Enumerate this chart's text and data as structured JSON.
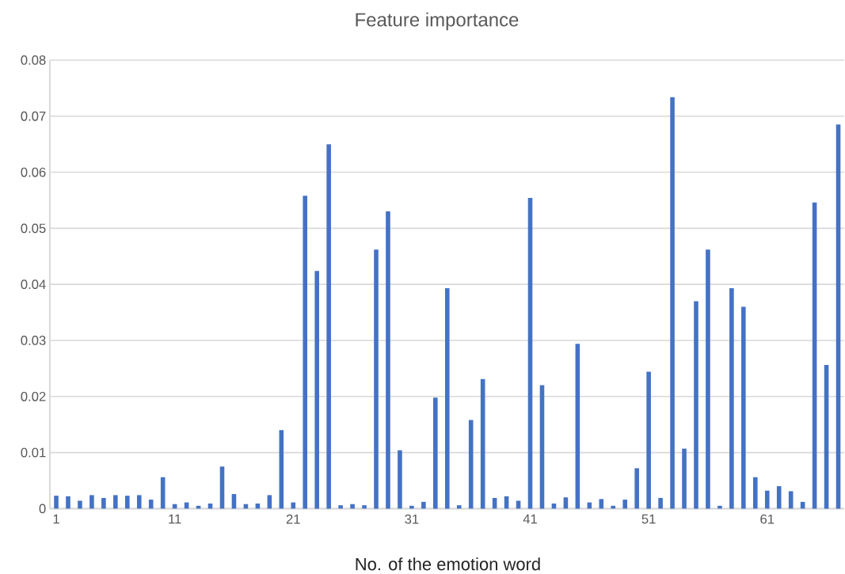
{
  "chart_data": {
    "type": "bar",
    "title": "Feature importance",
    "xlabel": "No. of the emotion word",
    "categories": [
      "1",
      null,
      null,
      null,
      null,
      null,
      null,
      null,
      null,
      null,
      "11",
      null,
      null,
      null,
      null,
      null,
      null,
      null,
      null,
      null,
      "21",
      null,
      null,
      null,
      null,
      null,
      null,
      null,
      null,
      null,
      "31",
      null,
      null,
      null,
      null,
      null,
      null,
      null,
      null,
      null,
      "41",
      null,
      null,
      null,
      null,
      null,
      null,
      null,
      null,
      null,
      "51",
      null,
      null,
      null,
      null,
      null,
      null,
      null,
      null,
      null,
      "61",
      null,
      null,
      null,
      null,
      null,
      null
    ],
    "values": [
      0.0023,
      0.0022,
      0.0014,
      0.0024,
      0.0019,
      0.0024,
      0.0023,
      0.0024,
      0.0016,
      0.0056,
      0.0008,
      0.0011,
      0.0005,
      0.0009,
      0.0075,
      0.0026,
      0.0008,
      0.0009,
      0.0024,
      0.014,
      0.0011,
      0.0558,
      0.0424,
      0.065,
      0.0006,
      0.0008,
      0.0006,
      0.0462,
      0.053,
      0.0104,
      0.0005,
      0.0012,
      0.0198,
      0.0393,
      0.0006,
      0.0158,
      0.0231,
      0.0019,
      0.0022,
      0.0014,
      0.0554,
      0.022,
      0.0009,
      0.002,
      0.0294,
      0.0011,
      0.0017,
      0.0005,
      0.0016,
      0.0072,
      0.0244,
      0.0019,
      0.0734,
      0.0107,
      0.037,
      0.0462,
      0.0005,
      0.0393,
      0.036,
      0.0056,
      0.0032,
      0.004,
      0.0031,
      0.0012,
      0.0546,
      0.0256,
      0.0685
    ],
    "color": "#4472c4",
    "ylim": [
      0,
      0.08
    ],
    "yticks": [
      0,
      0.01,
      0.02,
      0.03,
      0.04,
      0.05,
      0.06,
      0.07,
      0.08
    ],
    "grid": "y"
  }
}
